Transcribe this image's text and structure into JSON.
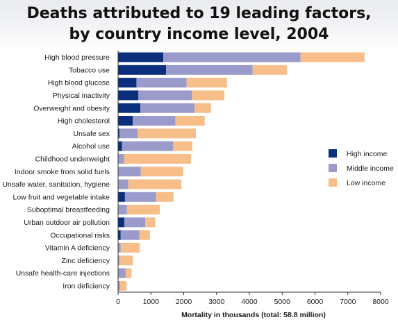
{
  "title_lines": [
    "Deaths attributed to 19 leading factors,",
    "by country income level, 2004"
  ],
  "chart_data": {
    "type": "bar",
    "orientation": "horizontal",
    "stacked": true,
    "categories": [
      "High blood pressure",
      "Tobacco use",
      "High blood glucose",
      "Physical inactivity",
      "Overweight and obesity",
      "High cholesterol",
      "Unsafe sex",
      "Alcohol use",
      "Childhood underweight",
      "Indoor smoke from solid fuels",
      "Unsafe water, sanitation, hygiene",
      "Low fruit and vegetable intake",
      "Suboptimal breastfeeding",
      "Urban outdoor air pollution",
      "Occupational risks",
      "Vitamin A deficiency",
      "Zinc deficiency",
      "Unsafe health-care injections",
      "Iron deficiency"
    ],
    "series": [
      {
        "name": "High income",
        "color": "#0b2f7c",
        "values": [
          1380,
          1460,
          560,
          620,
          680,
          450,
          40,
          120,
          0,
          0,
          0,
          210,
          0,
          190,
          80,
          0,
          0,
          0,
          0
        ]
      },
      {
        "name": "Middle income",
        "color": "#9b9bcb",
        "values": [
          4180,
          2640,
          1530,
          1630,
          1650,
          1300,
          560,
          1560,
          180,
          690,
          310,
          950,
          270,
          640,
          570,
          80,
          40,
          230,
          60
        ]
      },
      {
        "name": "Low income",
        "color": "#f7be8a",
        "values": [
          1950,
          1040,
          1230,
          990,
          500,
          890,
          1770,
          580,
          2040,
          1290,
          1620,
          530,
          1000,
          300,
          320,
          580,
          410,
          180,
          200
        ]
      }
    ],
    "x_ticks": [
      "0",
      "1000",
      "2000",
      "3000",
      "4000",
      "5000",
      "6000",
      "7000",
      "8000"
    ],
    "xlim": [
      0,
      8000
    ],
    "xlabel": "Mortality in thousands (total: 58.8 million)",
    "ylabel": "",
    "legend_position": "right",
    "grid": false
  }
}
